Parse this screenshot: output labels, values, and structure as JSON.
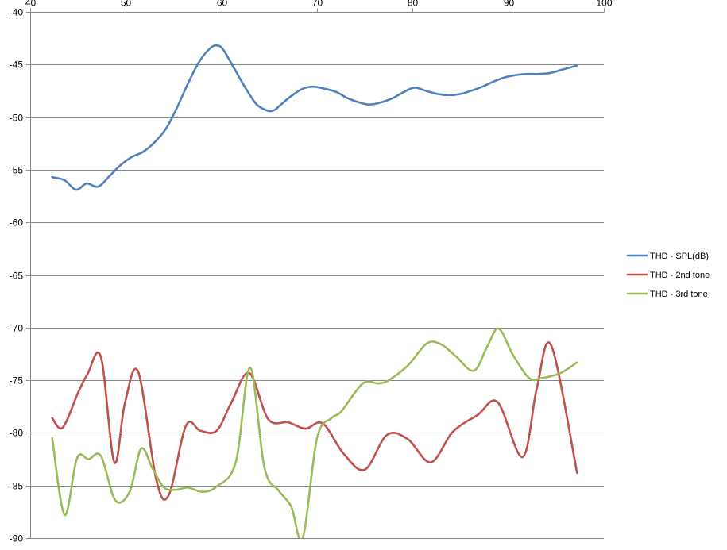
{
  "chart_data": {
    "type": "line",
    "title": "",
    "xlabel": "",
    "ylabel": "",
    "xlim": [
      40,
      100
    ],
    "ylim": [
      -90,
      -40
    ],
    "x_ticks": [
      40,
      50,
      60,
      70,
      80,
      90,
      100
    ],
    "x_tick_labels": [
      "40",
      "50",
      "60",
      "70",
      "80",
      "90",
      "100"
    ],
    "y_ticks": [
      -40,
      -45,
      -50,
      -55,
      -60,
      -65,
      -70,
      -75,
      -80,
      -85,
      -90
    ],
    "y_tick_labels": [
      "-40",
      "-45",
      "-50",
      "-55",
      "-60",
      "-65",
      "-70",
      "-75",
      "-80",
      "-85",
      "-90"
    ],
    "x_axis_position": "top",
    "grid": "horizontal",
    "legend_position": "right",
    "series": [
      {
        "name": "THD - SPL(dB)",
        "color": "#4F81BD",
        "points": [
          [
            42.3,
            -55.7
          ],
          [
            43.6,
            -56.0
          ],
          [
            44.8,
            -56.9
          ],
          [
            45.9,
            -56.3
          ],
          [
            47.1,
            -56.6
          ],
          [
            48.3,
            -55.6
          ],
          [
            49.4,
            -54.6
          ],
          [
            50.6,
            -53.8
          ],
          [
            51.8,
            -53.3
          ],
          [
            53.0,
            -52.4
          ],
          [
            54.2,
            -51.1
          ],
          [
            55.3,
            -49.2
          ],
          [
            56.5,
            -46.8
          ],
          [
            57.7,
            -44.7
          ],
          [
            58.9,
            -43.4
          ],
          [
            59.6,
            -43.2
          ],
          [
            60.2,
            -43.6
          ],
          [
            61.3,
            -45.3
          ],
          [
            62.5,
            -47.2
          ],
          [
            63.7,
            -48.8
          ],
          [
            64.9,
            -49.4
          ],
          [
            65.6,
            -49.3
          ],
          [
            66.1,
            -48.9
          ],
          [
            67.3,
            -48.0
          ],
          [
            68.5,
            -47.3
          ],
          [
            69.6,
            -47.1
          ],
          [
            70.8,
            -47.3
          ],
          [
            72.0,
            -47.6
          ],
          [
            73.2,
            -48.2
          ],
          [
            74.4,
            -48.6
          ],
          [
            75.5,
            -48.8
          ],
          [
            76.7,
            -48.6
          ],
          [
            77.9,
            -48.2
          ],
          [
            79.1,
            -47.6
          ],
          [
            80.2,
            -47.2
          ],
          [
            81.4,
            -47.5
          ],
          [
            82.6,
            -47.8
          ],
          [
            83.8,
            -47.9
          ],
          [
            85.0,
            -47.8
          ],
          [
            86.1,
            -47.5
          ],
          [
            87.3,
            -47.1
          ],
          [
            88.5,
            -46.6
          ],
          [
            89.7,
            -46.2
          ],
          [
            90.8,
            -46.0
          ],
          [
            92.0,
            -45.9
          ],
          [
            93.2,
            -45.9
          ],
          [
            94.4,
            -45.8
          ],
          [
            95.6,
            -45.5
          ],
          [
            97.2,
            -45.1
          ]
        ]
      },
      {
        "name": "THD - 2nd tone",
        "color": "#C0504D",
        "points": [
          [
            42.3,
            -78.6
          ],
          [
            43.4,
            -79.5
          ],
          [
            45.0,
            -76.2
          ],
          [
            46.0,
            -74.4
          ],
          [
            47.4,
            -72.8
          ],
          [
            48.8,
            -82.8
          ],
          [
            49.9,
            -77.2
          ],
          [
            51.3,
            -74.2
          ],
          [
            53.2,
            -84.5
          ],
          [
            54.5,
            -85.9
          ],
          [
            56.3,
            -79.3
          ],
          [
            57.8,
            -79.8
          ],
          [
            59.5,
            -79.8
          ],
          [
            61.0,
            -77.2
          ],
          [
            62.9,
            -74.3
          ],
          [
            64.9,
            -78.7
          ],
          [
            67.0,
            -79.0
          ],
          [
            68.8,
            -79.6
          ],
          [
            70.6,
            -79.1
          ],
          [
            72.8,
            -82.0
          ],
          [
            75.0,
            -83.5
          ],
          [
            77.3,
            -80.2
          ],
          [
            79.5,
            -80.6
          ],
          [
            81.9,
            -82.8
          ],
          [
            84.2,
            -79.9
          ],
          [
            86.8,
            -78.3
          ],
          [
            88.9,
            -77.1
          ],
          [
            91.5,
            -82.3
          ],
          [
            93.0,
            -75.7
          ],
          [
            94.5,
            -71.7
          ],
          [
            97.2,
            -83.8
          ]
        ]
      },
      {
        "name": "THD - 3rd tone",
        "color": "#9BBB59",
        "points": [
          [
            42.3,
            -80.5
          ],
          [
            43.6,
            -87.8
          ],
          [
            44.9,
            -82.4
          ],
          [
            46.1,
            -82.5
          ],
          [
            47.4,
            -82.2
          ],
          [
            48.9,
            -86.4
          ],
          [
            50.4,
            -85.6
          ],
          [
            51.6,
            -81.5
          ],
          [
            52.8,
            -83.4
          ],
          [
            54.0,
            -85.2
          ],
          [
            55.3,
            -85.4
          ],
          [
            56.5,
            -85.2
          ],
          [
            58.0,
            -85.6
          ],
          [
            59.5,
            -85.1
          ],
          [
            61.5,
            -82.8
          ],
          [
            63.0,
            -73.8
          ],
          [
            64.5,
            -83.3
          ],
          [
            66.0,
            -85.5
          ],
          [
            67.3,
            -87.0
          ],
          [
            68.5,
            -90.0
          ],
          [
            70.0,
            -80.5
          ],
          [
            71.5,
            -78.6
          ],
          [
            72.5,
            -78.0
          ],
          [
            74.8,
            -75.3
          ],
          [
            76.4,
            -75.3
          ],
          [
            77.5,
            -75.0
          ],
          [
            79.5,
            -73.6
          ],
          [
            81.5,
            -71.5
          ],
          [
            83.0,
            -71.6
          ],
          [
            84.5,
            -72.7
          ],
          [
            86.4,
            -74.1
          ],
          [
            87.8,
            -71.8
          ],
          [
            89.0,
            -70.1
          ],
          [
            90.5,
            -72.6
          ],
          [
            92.2,
            -74.8
          ],
          [
            93.5,
            -74.8
          ],
          [
            95.5,
            -74.3
          ],
          [
            97.2,
            -73.3
          ]
        ]
      }
    ]
  }
}
